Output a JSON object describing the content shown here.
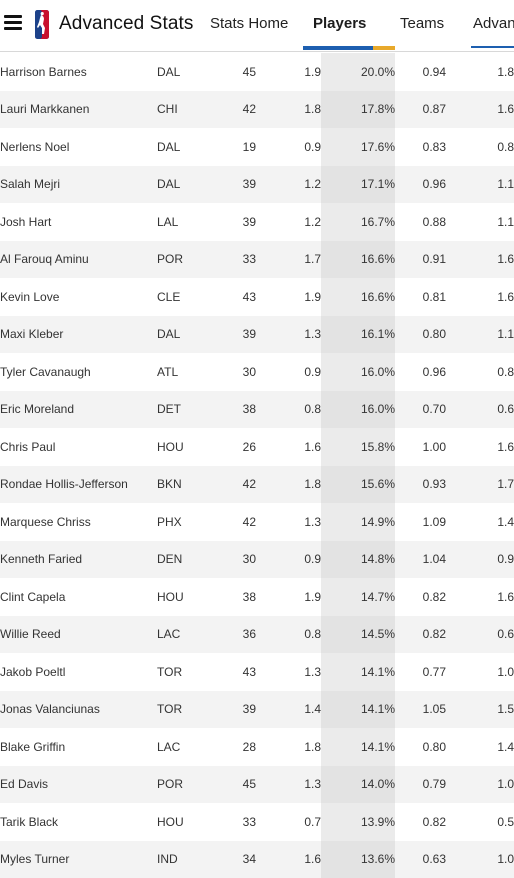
{
  "header": {
    "title": "Advanced Stats",
    "tabs": [
      {
        "label": "Stats Home"
      },
      {
        "label": "Players"
      },
      {
        "label": "Teams"
      },
      {
        "label": "Advan"
      }
    ],
    "accent_color": "#1d5fb0",
    "secondary_accent": "#e8a92b"
  },
  "table": {
    "rows": [
      {
        "player": "Harrison Barnes",
        "team": "DAL",
        "c3": "45",
        "c4": "1.9",
        "c5": "20.0%",
        "c6": "0.94",
        "c7": "1.8"
      },
      {
        "player": "Lauri Markkanen",
        "team": "CHI",
        "c3": "42",
        "c4": "1.8",
        "c5": "17.8%",
        "c6": "0.87",
        "c7": "1.6"
      },
      {
        "player": "Nerlens Noel",
        "team": "DAL",
        "c3": "19",
        "c4": "0.9",
        "c5": "17.6%",
        "c6": "0.83",
        "c7": "0.8"
      },
      {
        "player": "Salah Mejri",
        "team": "DAL",
        "c3": "39",
        "c4": "1.2",
        "c5": "17.1%",
        "c6": "0.96",
        "c7": "1.1"
      },
      {
        "player": "Josh Hart",
        "team": "LAL",
        "c3": "39",
        "c4": "1.2",
        "c5": "16.7%",
        "c6": "0.88",
        "c7": "1.1"
      },
      {
        "player": "Al Farouq Aminu",
        "team": "POR",
        "c3": "33",
        "c4": "1.7",
        "c5": "16.6%",
        "c6": "0.91",
        "c7": "1.6"
      },
      {
        "player": "Kevin Love",
        "team": "CLE",
        "c3": "43",
        "c4": "1.9",
        "c5": "16.6%",
        "c6": "0.81",
        "c7": "1.6"
      },
      {
        "player": "Maxi Kleber",
        "team": "DAL",
        "c3": "39",
        "c4": "1.3",
        "c5": "16.1%",
        "c6": "0.80",
        "c7": "1.1"
      },
      {
        "player": "Tyler Cavanaugh",
        "team": "ATL",
        "c3": "30",
        "c4": "0.9",
        "c5": "16.0%",
        "c6": "0.96",
        "c7": "0.8"
      },
      {
        "player": "Eric Moreland",
        "team": "DET",
        "c3": "38",
        "c4": "0.8",
        "c5": "16.0%",
        "c6": "0.70",
        "c7": "0.6"
      },
      {
        "player": "Chris Paul",
        "team": "HOU",
        "c3": "26",
        "c4": "1.6",
        "c5": "15.8%",
        "c6": "1.00",
        "c7": "1.6"
      },
      {
        "player": "Rondae Hollis-Jefferson",
        "team": "BKN",
        "c3": "42",
        "c4": "1.8",
        "c5": "15.6%",
        "c6": "0.93",
        "c7": "1.7"
      },
      {
        "player": "Marquese Chriss",
        "team": "PHX",
        "c3": "42",
        "c4": "1.3",
        "c5": "14.9%",
        "c6": "1.09",
        "c7": "1.4"
      },
      {
        "player": "Kenneth Faried",
        "team": "DEN",
        "c3": "30",
        "c4": "0.9",
        "c5": "14.8%",
        "c6": "1.04",
        "c7": "0.9"
      },
      {
        "player": "Clint Capela",
        "team": "HOU",
        "c3": "38",
        "c4": "1.9",
        "c5": "14.7%",
        "c6": "0.82",
        "c7": "1.6"
      },
      {
        "player": "Willie Reed",
        "team": "LAC",
        "c3": "36",
        "c4": "0.8",
        "c5": "14.5%",
        "c6": "0.82",
        "c7": "0.6"
      },
      {
        "player": "Jakob Poeltl",
        "team": "TOR",
        "c3": "43",
        "c4": "1.3",
        "c5": "14.1%",
        "c6": "0.77",
        "c7": "1.0"
      },
      {
        "player": "Jonas Valanciunas",
        "team": "TOR",
        "c3": "39",
        "c4": "1.4",
        "c5": "14.1%",
        "c6": "1.05",
        "c7": "1.5"
      },
      {
        "player": "Blake Griffin",
        "team": "LAC",
        "c3": "28",
        "c4": "1.8",
        "c5": "14.1%",
        "c6": "0.80",
        "c7": "1.4"
      },
      {
        "player": "Ed Davis",
        "team": "POR",
        "c3": "45",
        "c4": "1.3",
        "c5": "14.0%",
        "c6": "0.79",
        "c7": "1.0"
      },
      {
        "player": "Tarik Black",
        "team": "HOU",
        "c3": "33",
        "c4": "0.7",
        "c5": "13.9%",
        "c6": "0.82",
        "c7": "0.5"
      },
      {
        "player": "Myles Turner",
        "team": "IND",
        "c3": "34",
        "c4": "1.6",
        "c5": "13.6%",
        "c6": "0.63",
        "c7": "1.0"
      }
    ]
  }
}
